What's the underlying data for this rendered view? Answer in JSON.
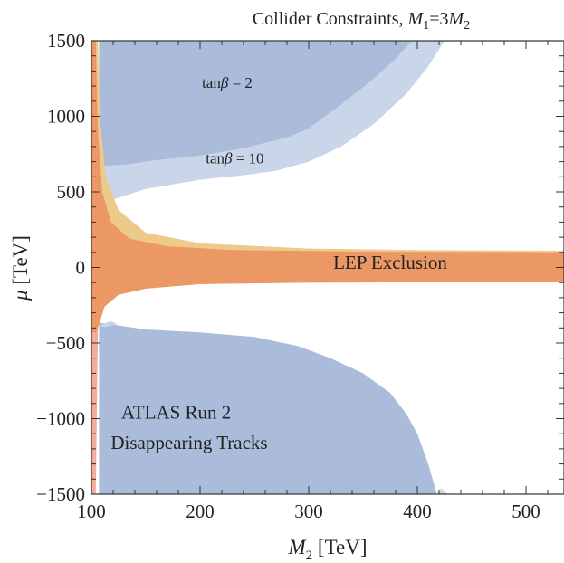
{
  "chart_data": {
    "type": "area",
    "title": "Collider Constraints, M1=3M2",
    "xlabel": "M2 [TeV]",
    "ylabel": "μ [TeV]",
    "xlim": [
      100,
      535
    ],
    "ylim": [
      -1500,
      1500
    ],
    "xticks": [
      100,
      200,
      300,
      400,
      500
    ],
    "yticks": [
      -1500,
      -1000,
      -500,
      0,
      500,
      1000,
      1500
    ],
    "ytick_labels": [
      "−1500",
      "−1000",
      "−500",
      "0",
      "500",
      "1000",
      "1500"
    ],
    "grid": false,
    "colors": {
      "atlas_tanb10": "#c9d5e8",
      "atlas_tanb2": "#aabcd9",
      "lep_tanb10": "#eec98c",
      "lep_tanb2": "#f5ad9a",
      "lep_overlap": "#ec9864"
    },
    "annotations": [
      {
        "text": "tan",
        "beta": "β",
        "rest": " = 2",
        "x": 225,
        "y": 1190
      },
      {
        "text": "tan",
        "beta": "β",
        "rest": " = 10",
        "x": 232,
        "y": 690
      },
      {
        "text": "LEP Exclusion",
        "x": 375,
        "y": -10
      },
      {
        "text": "ATLAS Run 2",
        "x": 178,
        "y": -1000
      },
      {
        "text": "Disappearing Tracks",
        "x": 190,
        "y": -1200
      }
    ],
    "series": [
      {
        "region": "atlas_tanb10",
        "points": [
          [
            107,
            1500
          ],
          [
            107,
            420
          ],
          [
            120,
            450
          ],
          [
            150,
            520
          ],
          [
            200,
            580
          ],
          [
            240,
            610
          ],
          [
            270,
            640
          ],
          [
            300,
            700
          ],
          [
            330,
            800
          ],
          [
            360,
            950
          ],
          [
            390,
            1150
          ],
          [
            410,
            1330
          ],
          [
            425,
            1500
          ]
        ]
      },
      {
        "region": "atlas_tanb2",
        "points": [
          [
            107,
            1500
          ],
          [
            107,
            670
          ],
          [
            130,
            680
          ],
          [
            160,
            710
          ],
          [
            200,
            740
          ],
          [
            240,
            790
          ],
          [
            280,
            860
          ],
          [
            300,
            920
          ],
          [
            330,
            1080
          ],
          [
            360,
            1250
          ],
          [
            380,
            1380
          ],
          [
            395,
            1500
          ]
        ]
      },
      {
        "region": "atlas_tanb2",
        "points": [
          [
            107,
            -365
          ],
          [
            150,
            -410
          ],
          [
            200,
            -430
          ],
          [
            250,
            -460
          ],
          [
            290,
            -520
          ],
          [
            320,
            -600
          ],
          [
            350,
            -700
          ],
          [
            375,
            -830
          ],
          [
            390,
            -970
          ],
          [
            400,
            -1100
          ],
          [
            410,
            -1300
          ],
          [
            418,
            -1500
          ],
          [
            107,
            -1500
          ]
        ]
      },
      {
        "region": "atlas_tanb10",
        "points": [
          [
            418,
            -1500
          ],
          [
            422,
            -1460
          ],
          [
            428,
            -1500
          ]
        ]
      },
      {
        "region": "atlas_tanb10",
        "points": [
          [
            107,
            -385
          ],
          [
            118,
            -355
          ],
          [
            124,
            -375
          ],
          [
            112,
            -395
          ]
        ]
      },
      {
        "region": "lep_tanb10",
        "points": [
          [
            100,
            1500
          ],
          [
            106,
            1500
          ],
          [
            108,
            980
          ],
          [
            113,
            600
          ],
          [
            125,
            380
          ],
          [
            150,
            230
          ],
          [
            200,
            160
          ],
          [
            300,
            125
          ],
          [
            400,
            115
          ],
          [
            535,
            110
          ],
          [
            535,
            -95
          ],
          [
            100,
            -95
          ]
        ]
      },
      {
        "region": "lep_tanb2",
        "points": [
          [
            100,
            -1500
          ],
          [
            104,
            -1500
          ],
          [
            106,
            -400
          ],
          [
            112,
            -260
          ],
          [
            125,
            -180
          ],
          [
            150,
            -140
          ],
          [
            200,
            -110
          ],
          [
            300,
            -100
          ],
          [
            535,
            -95
          ],
          [
            535,
            95
          ],
          [
            100,
            95
          ]
        ]
      },
      {
        "region": "lep_overlap",
        "points": [
          [
            100,
            1500
          ],
          [
            104,
            1500
          ],
          [
            106,
            900
          ],
          [
            110,
            500
          ],
          [
            118,
            300
          ],
          [
            135,
            190
          ],
          [
            170,
            140
          ],
          [
            230,
            115
          ],
          [
            350,
            105
          ],
          [
            535,
            100
          ],
          [
            535,
            -95
          ],
          [
            300,
            -100
          ],
          [
            200,
            -110
          ],
          [
            150,
            -140
          ],
          [
            125,
            -180
          ],
          [
            112,
            -260
          ],
          [
            106,
            -400
          ],
          [
            104,
            -430
          ],
          [
            100,
            -430
          ]
        ]
      }
    ]
  }
}
